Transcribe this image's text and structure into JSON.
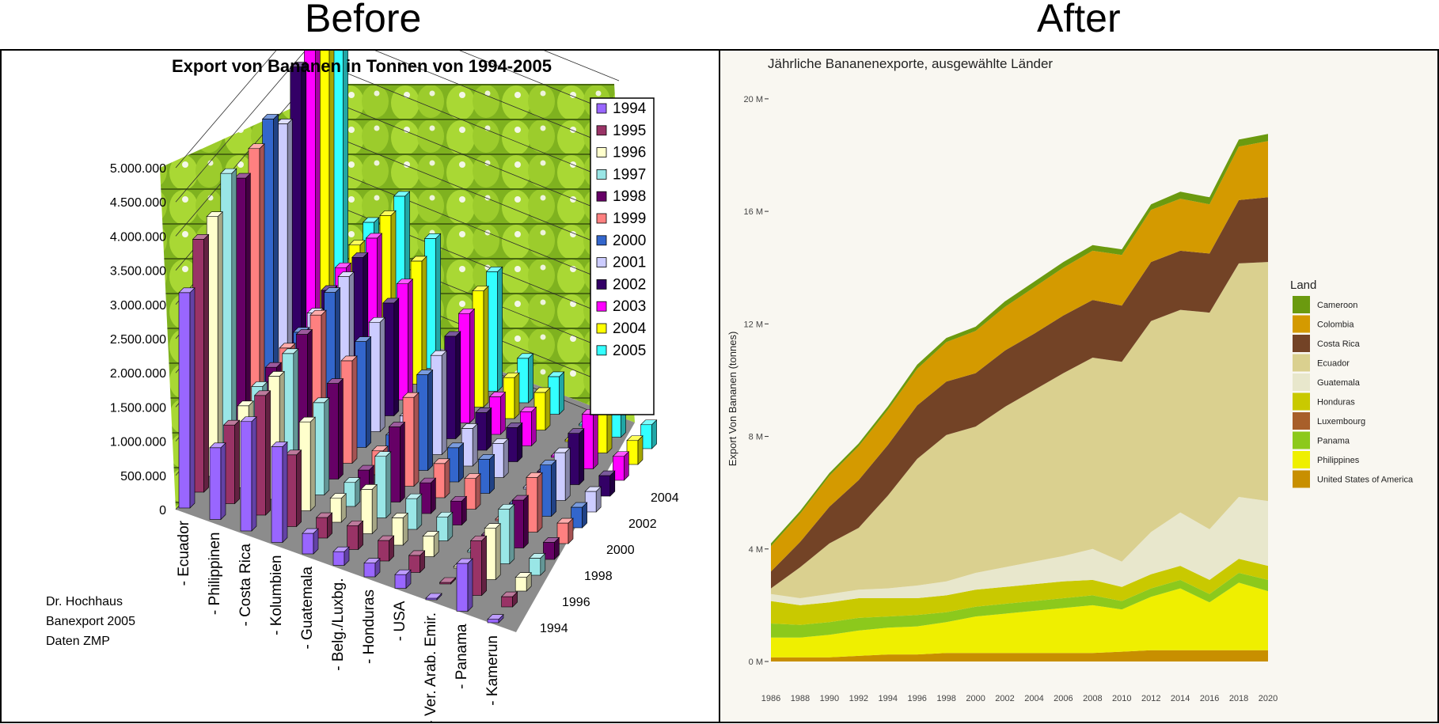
{
  "headings": {
    "before": "Before",
    "after": "After"
  },
  "before": {
    "credit": [
      "Dr. Hochhaus",
      "Banexport 2005",
      "Daten ZMP"
    ],
    "chart_data": {
      "type": "bar",
      "title": "Export von Bananen in Tonnen von 1994-2005",
      "y_ticks": [
        "5.000.000",
        "4.500.000",
        "4.000.000",
        "3.500.000",
        "3.000.000",
        "2.500.000",
        "2.000.000",
        "1.500.000",
        "1.000.000",
        "500.000",
        "0"
      ],
      "ylim": [
        0,
        5000000
      ],
      "categories": [
        "- Ecuador",
        "- Philippinen",
        "- Costa Rica",
        "- Kolumbien",
        "- Guatemala",
        "- Belg./Luxbg.",
        "- Honduras",
        "- USA",
        "- Ver. Arab. Emir.",
        "- Panama",
        "- Kamerun"
      ],
      "depth_ticks": [
        "2004",
        "2002",
        "2000",
        "1998",
        "1996",
        "1994"
      ],
      "legend_position": "right",
      "series": [
        {
          "name": "1994",
          "color": "#9966ff",
          "values": [
            3150000,
            1050000,
            1600000,
            1400000,
            300000,
            200000,
            200000,
            200000,
            0,
            700000,
            50000
          ]
        },
        {
          "name": "1995",
          "color": "#993366",
          "values": [
            3700000,
            1150000,
            1750000,
            1050000,
            300000,
            350000,
            300000,
            250000,
            0,
            800000,
            150000
          ]
        },
        {
          "name": "1996",
          "color": "#ffffcc",
          "values": [
            3800000,
            1200000,
            1800000,
            1300000,
            350000,
            650000,
            400000,
            300000,
            0,
            750000,
            200000
          ]
        },
        {
          "name": "1997",
          "color": "#99e6e6",
          "values": [
            4200000,
            1250000,
            1900000,
            1350000,
            350000,
            900000,
            450000,
            350000,
            0,
            800000,
            250000
          ]
        },
        {
          "name": "1998",
          "color": "#660066",
          "values": [
            3900000,
            1300000,
            1950000,
            1400000,
            300000,
            1100000,
            450000,
            350000,
            0,
            700000,
            250000
          ]
        },
        {
          "name": "1999",
          "color": "#ff8080",
          "values": [
            4100000,
            1350000,
            2000000,
            1500000,
            350000,
            1300000,
            500000,
            450000,
            0,
            800000,
            300000
          ]
        },
        {
          "name": "2000",
          "color": "#3366cc",
          "values": [
            4300000,
            1350000,
            2100000,
            1550000,
            350000,
            1400000,
            500000,
            500000,
            0,
            750000,
            300000
          ]
        },
        {
          "name": "2001",
          "color": "#ccccff",
          "values": [
            4000000,
            1400000,
            2100000,
            1600000,
            400000,
            1450000,
            550000,
            500000,
            0,
            700000,
            300000
          ]
        },
        {
          "name": "2002",
          "color": "#330066",
          "values": [
            4600000,
            1500000,
            2150000,
            1650000,
            400000,
            1500000,
            550000,
            500000,
            0,
            750000,
            300000
          ]
        },
        {
          "name": "2003",
          "color": "#ff00ff",
          "values": [
            4950000,
            1600000,
            2200000,
            1700000,
            450000,
            1600000,
            550000,
            500000,
            0,
            800000,
            350000
          ]
        },
        {
          "name": "2004",
          "color": "#ffff00",
          "values": [
            5000000,
            1700000,
            2300000,
            1800000,
            450000,
            1700000,
            600000,
            550000,
            0,
            850000,
            350000
          ]
        },
        {
          "name": "2005",
          "color": "#33ffff",
          "values": [
            5000000,
            1800000,
            2350000,
            1900000,
            500000,
            1750000,
            650000,
            550000,
            0,
            900000,
            350000
          ]
        }
      ]
    }
  },
  "after": {
    "chart_data": {
      "type": "area",
      "title": "Jährliche Bananenexporte, ausgewählte Länder",
      "ylabel": "Export Von Bananen (tonnes)",
      "x": [
        1986,
        1988,
        1990,
        1992,
        1994,
        1996,
        1998,
        2000,
        2002,
        2004,
        2006,
        2008,
        2010,
        2012,
        2014,
        2016,
        2018,
        2020
      ],
      "x_ticks": [
        "1986",
        "1988",
        "1990",
        "1992",
        "1994",
        "1996",
        "1998",
        "2000",
        "2002",
        "2004",
        "2006",
        "2008",
        "2010",
        "2012",
        "2014",
        "2016",
        "2018",
        "2020"
      ],
      "y_ticks": [
        {
          "value": 0,
          "label": "0 M"
        },
        {
          "value": 4000000,
          "label": "4 M"
        },
        {
          "value": 8000000,
          "label": "8 M"
        },
        {
          "value": 12000000,
          "label": "12 M"
        },
        {
          "value": 16000000,
          "label": "16 M"
        },
        {
          "value": 20000000,
          "label": "20 M"
        }
      ],
      "ylim": [
        0,
        21600000
      ],
      "legend_title": "Land",
      "legend_position": "right",
      "stack_order": [
        "United States of America",
        "Philippines",
        "Panama",
        "Luxembourg",
        "Honduras",
        "Guatemala",
        "Ecuador",
        "Costa Rica",
        "Colombia",
        "Cameroon"
      ],
      "series": [
        {
          "name": "Cameroon",
          "color": "#6b9a0f",
          "values": [
            100000,
            100000,
            100000,
            100000,
            120000,
            150000,
            150000,
            150000,
            200000,
            200000,
            200000,
            200000,
            200000,
            200000,
            250000,
            250000,
            250000,
            250000
          ]
        },
        {
          "name": "Colombia",
          "color": "#d49a00",
          "values": [
            900000,
            1000000,
            1100000,
            1200000,
            1250000,
            1300000,
            1400000,
            1500000,
            1550000,
            1650000,
            1700000,
            1750000,
            1800000,
            1850000,
            1850000,
            1750000,
            1900000,
            2000000
          ]
        },
        {
          "name": "Costa Rica",
          "color": "#734326",
          "values": [
            600000,
            900000,
            1300000,
            1700000,
            1800000,
            1900000,
            1900000,
            1900000,
            2000000,
            2000000,
            2050000,
            2050000,
            2000000,
            2100000,
            2100000,
            2100000,
            2250000,
            2300000
          ]
        },
        {
          "name": "Ecuador",
          "color": "#dad08f",
          "values": [
            200000,
            1100000,
            1800000,
            2200000,
            3300000,
            4500000,
            5200000,
            5200000,
            5700000,
            6100000,
            6500000,
            6800000,
            7100000,
            7500000,
            7200000,
            7700000,
            8300000,
            8500000
          ]
        },
        {
          "name": "Guatemala",
          "color": "#e8e7cc",
          "values": [
            250000,
            250000,
            300000,
            300000,
            350000,
            450000,
            500000,
            600000,
            700000,
            800000,
            900000,
            1100000,
            900000,
            1500000,
            1900000,
            1800000,
            2200000,
            2300000
          ]
        },
        {
          "name": "Honduras",
          "color": "#c9c900",
          "values": [
            800000,
            700000,
            700000,
            700000,
            650000,
            600000,
            600000,
            600000,
            600000,
            600000,
            600000,
            550000,
            500000,
            500000,
            500000,
            500000,
            500000,
            500000
          ]
        },
        {
          "name": "Luxembourg",
          "color": "#a85f2a",
          "values": [
            0,
            0,
            0,
            0,
            0,
            0,
            0,
            0,
            0,
            0,
            0,
            0,
            0,
            0,
            0,
            0,
            0,
            0
          ]
        },
        {
          "name": "Panama",
          "color": "#8cc91c",
          "values": [
            500000,
            450000,
            450000,
            450000,
            400000,
            400000,
            350000,
            350000,
            350000,
            350000,
            350000,
            350000,
            300000,
            300000,
            300000,
            300000,
            350000,
            400000
          ]
        },
        {
          "name": "Philippines",
          "color": "#efef00",
          "values": [
            700000,
            700000,
            800000,
            900000,
            950000,
            1000000,
            1100000,
            1300000,
            1400000,
            1500000,
            1600000,
            1700000,
            1500000,
            1900000,
            2200000,
            1700000,
            2400000,
            2100000
          ]
        },
        {
          "name": "United States of America",
          "color": "#c88f00",
          "values": [
            150000,
            150000,
            150000,
            200000,
            250000,
            250000,
            300000,
            300000,
            300000,
            300000,
            300000,
            300000,
            350000,
            400000,
            400000,
            400000,
            400000,
            400000
          ]
        }
      ]
    }
  }
}
